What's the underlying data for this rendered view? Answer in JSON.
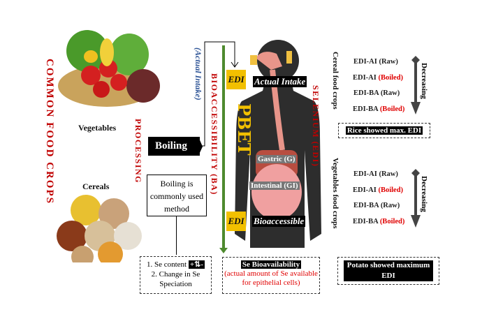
{
  "left": {
    "title": "COMMON FOOD CROPS",
    "vegetables": "Vegetables",
    "cereals": "Cereals",
    "processing": "PROCESSING"
  },
  "boiling": {
    "label": "Boiling",
    "note": "Boiling is commonly used method"
  },
  "center": {
    "actual_intake_vertical": "(Actual Intake)",
    "bioaccessibility": "BIOACCESSIBILITY (BA)",
    "pbet": "PBET",
    "edi": "EDI",
    "actual_intake": "Actual Intake",
    "bioaccessible": "Bioaccessible",
    "gastric": "Gastric (G)",
    "intestinal": "Intestinal (GI)",
    "selenium": "SELENIUM (EDI)"
  },
  "cereal": {
    "title": "Cereal food crops",
    "items": [
      {
        "a": "EDI-AI",
        "b": "(Raw)",
        "boiled": false
      },
      {
        "a": "EDI-AI",
        "b": "(Boiled)",
        "boiled": true
      },
      {
        "a": "EDI-BA",
        "b": "(Raw)",
        "boiled": false
      },
      {
        "a": "EDI-BA",
        "b": "(Boiled)",
        "boiled": true
      }
    ],
    "arrow": "Decreasing",
    "result": "Rice showed max. EDI"
  },
  "veg": {
    "title": "Vegetables food crops",
    "items": [
      {
        "a": "EDI-AI",
        "b": "(Raw)",
        "boiled": false
      },
      {
        "a": "EDI-AI",
        "b": "(Boiled)",
        "boiled": true
      },
      {
        "a": "EDI-BA",
        "b": "(Raw)",
        "boiled": false
      },
      {
        "a": "EDI-BA",
        "b": "(Boiled)",
        "boiled": true
      }
    ],
    "arrow": "Decreasing",
    "result": "Potato showed maximum EDI"
  },
  "bottom": {
    "box1_line1": "1. Se content",
    "box1_symbol": "+⇅-",
    "box1_line2": "2. Change in Se Speciation",
    "box2_title": "Se Bioavailability",
    "box2_sub": "(actual amount of Se available for epithelial cells)"
  },
  "colors": {
    "accent_red": "#c00000",
    "edi_yellow": "#f2c000",
    "green_line": "#4e8a2e",
    "actual_intake_blue": "#2f5597"
  }
}
